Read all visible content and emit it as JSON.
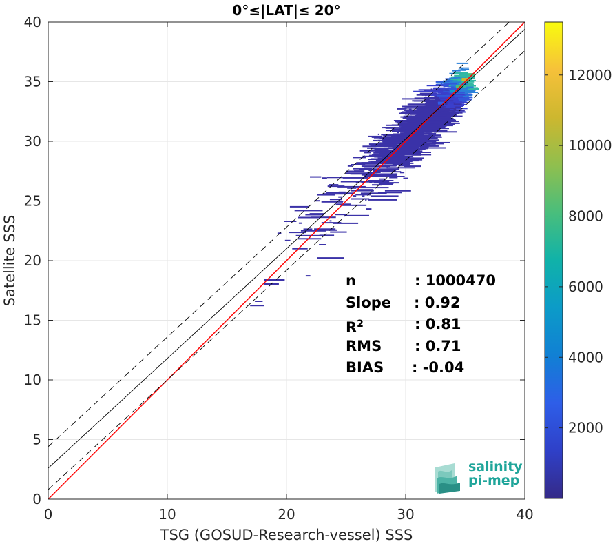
{
  "chart_data": {
    "type": "heatmap",
    "title": "0°≤|LAT|≤ 20°",
    "xlabel": "TSG (GOSUD-Research-vessel) SSS",
    "ylabel": "Satellite SSS",
    "xlim": [
      0,
      40
    ],
    "ylim": [
      0,
      40
    ],
    "xticks": [
      "0",
      "10",
      "20",
      "30",
      "40"
    ],
    "yticks": [
      "0",
      "5",
      "10",
      "15",
      "20",
      "25",
      "30",
      "35",
      "40"
    ],
    "grid": true,
    "colorbar": {
      "range": [
        0,
        13500
      ],
      "ticks": [
        "2000",
        "4000",
        "6000",
        "8000",
        "10000",
        "12000"
      ],
      "colormap": "parula"
    },
    "density_core": {
      "description_note": "",
      "points": [
        {
          "x": 35.0,
          "y": 35.2,
          "count": 10000
        },
        {
          "x": 34.5,
          "y": 34.6,
          "count": 6000
        },
        {
          "x": 35.5,
          "y": 35.6,
          "count": 8000
        },
        {
          "x": 34.0,
          "y": 34.2,
          "count": 3000
        },
        {
          "x": 33.0,
          "y": 33.2,
          "count": 1500
        }
      ]
    },
    "lines": [
      {
        "name": "",
        "type": "one-to-one",
        "color": "#ff0000",
        "x": [
          0,
          40
        ],
        "y": [
          0,
          40
        ]
      },
      {
        "name": "",
        "type": "regression",
        "color": "#000000",
        "x": [
          0,
          40
        ],
        "y": [
          2.6,
          39.4
        ]
      },
      {
        "name": "",
        "type": "regression-upper",
        "color": "#000000",
        "style": "dashed",
        "x": [
          0,
          40
        ],
        "y": [
          4.4,
          41.2
        ]
      },
      {
        "name": "",
        "type": "regression-lower",
        "color": "#000000",
        "style": "dashed",
        "x": [
          0,
          40
        ],
        "y": [
          0.8,
          37.6
        ]
      }
    ],
    "stats": {
      "n_label": "n",
      "n_value": ": 1000470",
      "slope_label": "Slope",
      "slope_value": ": 0.92",
      "r2_label": "R",
      "r2_sup": "2",
      "r2_value": ": 0.81",
      "rms_label": "RMS",
      "rms_value": ": 0.71",
      "bias_label": "BIAS",
      "bias_value": ": -0.04"
    }
  },
  "logo": {
    "line1": "salinity",
    "line2": "pi-mep"
  },
  "colors": {
    "one_to_one": "#ff0000",
    "regression": "#000000",
    "logo": "#1fa59a"
  }
}
